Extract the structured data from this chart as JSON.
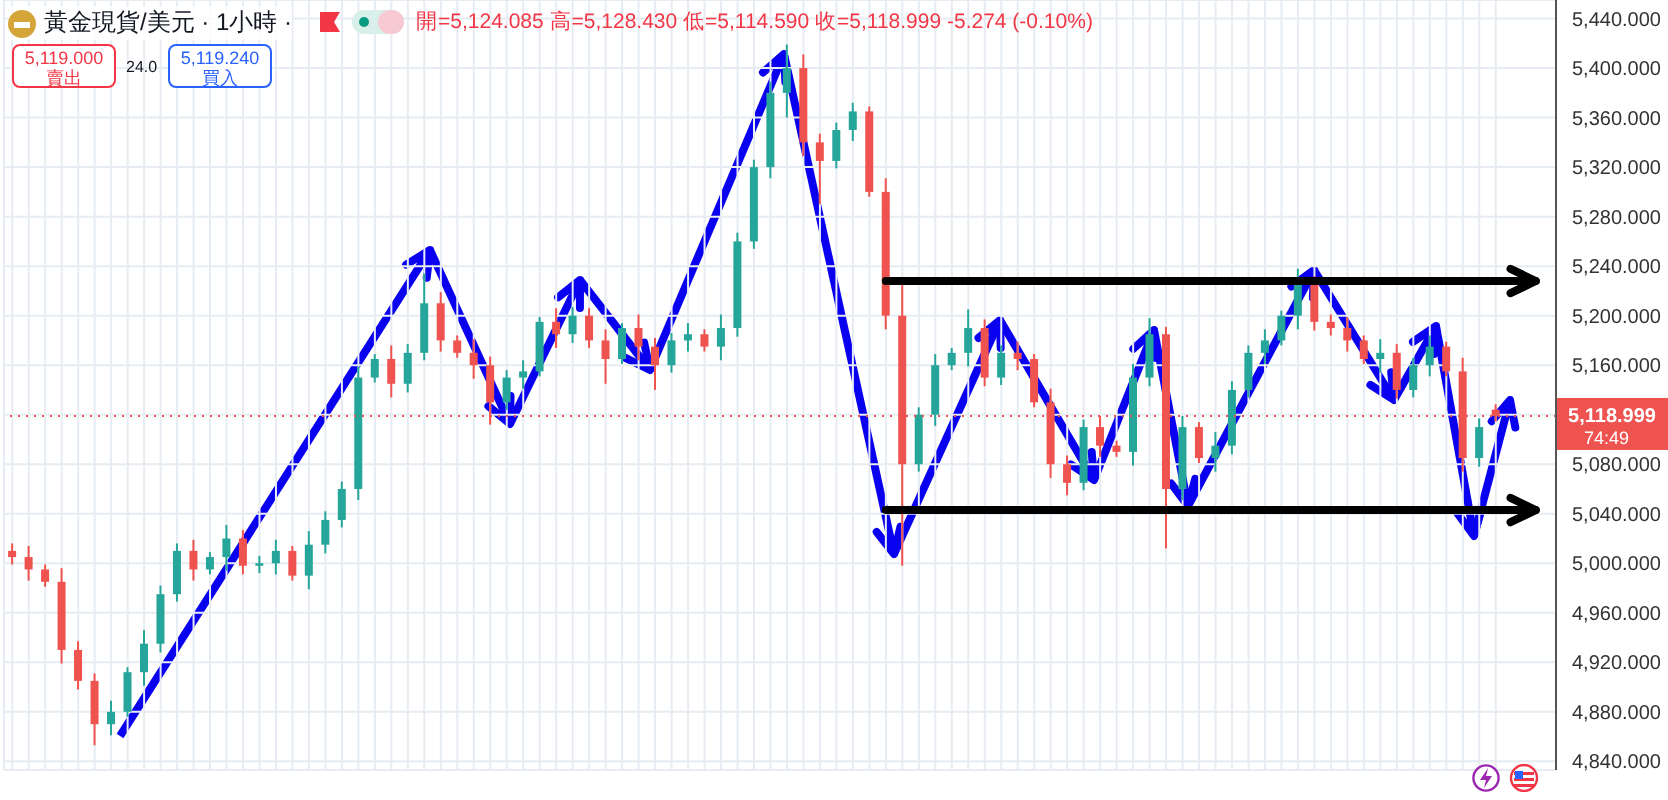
{
  "chart_data": {
    "type": "candlestick",
    "title": "黃金現貨/美元 · 1小時 ·",
    "subtitle": "開=5,124.085 高=5,128.430 低=5,114.590 收=5,118.999 -5.274 (-0.10%)",
    "annotations": [
      "5,119.000",
      "賣出",
      "24.0",
      "5,119.240",
      "買入",
      "74:49"
    ],
    "categories": [
      null,
      null,
      null,
      null,
      null,
      null,
      null,
      null,
      null,
      null,
      null,
      null,
      null,
      null,
      null,
      null,
      null,
      null,
      null,
      null,
      null,
      null,
      null,
      null,
      null,
      null,
      null,
      null,
      null,
      null,
      null,
      null,
      null,
      null,
      null,
      null,
      null,
      null,
      null,
      null,
      null,
      null,
      null,
      null,
      null,
      null,
      null,
      null,
      null,
      null,
      null,
      null,
      null,
      null,
      null,
      null,
      null,
      null,
      null,
      null,
      null,
      null,
      null,
      null,
      null,
      null,
      null,
      null,
      null,
      null,
      null,
      null,
      null,
      null,
      null,
      null,
      null,
      null,
      null,
      null,
      null,
      null,
      null,
      null,
      null,
      null,
      null,
      null,
      null,
      null,
      null
    ],
    "ohlc": [
      [
        5010,
        5016,
        4999,
        5005
      ],
      [
        5005,
        5014,
        4986,
        4995
      ],
      [
        4995,
        4999,
        4981,
        4985
      ],
      [
        4985,
        4996,
        4919,
        4930
      ],
      [
        4930,
        4937,
        4898,
        4905
      ],
      [
        4905,
        4911,
        4853,
        4870
      ],
      [
        4870,
        4889,
        4861,
        4880
      ],
      [
        4880,
        4916,
        4876,
        4912
      ],
      [
        4912,
        4946,
        4901,
        4935
      ],
      [
        4935,
        4982,
        4928,
        4975
      ],
      [
        4975,
        5016,
        4969,
        5010
      ],
      [
        5010,
        5019,
        4986,
        4995
      ],
      [
        4995,
        5009,
        4991,
        5005
      ],
      [
        5005,
        5031,
        4994,
        5020
      ],
      [
        5020,
        5027,
        4991,
        4998
      ],
      [
        4998,
        5006,
        4992,
        5000
      ],
      [
        5000,
        5019,
        4991,
        5010
      ],
      [
        5010,
        5014,
        4986,
        4990
      ],
      [
        4990,
        5026,
        4979,
        5015
      ],
      [
        5015,
        5042,
        5008,
        5035
      ],
      [
        5035,
        5066,
        5029,
        5060
      ],
      [
        5060,
        5159,
        5051,
        5150
      ],
      [
        5150,
        5169,
        5146,
        5165
      ],
      [
        5165,
        5176,
        5134,
        5145
      ],
      [
        5145,
        5177,
        5138,
        5170
      ],
      [
        5170,
        5234,
        5164,
        5210
      ],
      [
        5210,
        5219,
        5171,
        5180
      ],
      [
        5180,
        5184,
        5166,
        5170
      ],
      [
        5170,
        5181,
        5149,
        5160
      ],
      [
        5160,
        5167,
        5112,
        5130
      ],
      [
        5130,
        5156,
        5124,
        5150
      ],
      [
        5150,
        5164,
        5141,
        5155
      ],
      [
        5155,
        5199,
        5151,
        5195
      ],
      [
        5195,
        5206,
        5174,
        5185
      ],
      [
        5185,
        5207,
        5178,
        5200
      ],
      [
        5200,
        5206,
        5174,
        5180
      ],
      [
        5180,
        5189,
        5145,
        5165
      ],
      [
        5165,
        5194,
        5161,
        5190
      ],
      [
        5190,
        5201,
        5164,
        5175
      ],
      [
        5175,
        5182,
        5140,
        5160
      ],
      [
        5160,
        5186,
        5154,
        5180
      ],
      [
        5180,
        5194,
        5171,
        5185
      ],
      [
        5185,
        5189,
        5171,
        5175
      ],
      [
        5175,
        5201,
        5164,
        5190
      ],
      [
        5190,
        5267,
        5183,
        5260
      ],
      [
        5260,
        5326,
        5254,
        5320
      ],
      [
        5320,
        5389,
        5311,
        5380
      ],
      [
        5380,
        5419,
        5360,
        5400
      ],
      [
        5400,
        5411,
        5329,
        5340
      ],
      [
        5340,
        5347,
        5290,
        5325
      ],
      [
        5325,
        5356,
        5319,
        5350
      ],
      [
        5350,
        5372,
        5341,
        5365
      ],
      [
        5365,
        5369,
        5296,
        5300
      ],
      [
        5300,
        5311,
        5189,
        5200
      ],
      [
        5200,
        5230,
        4998,
        5080
      ],
      [
        5080,
        5126,
        5074,
        5120
      ],
      [
        5120,
        5169,
        5111,
        5160
      ],
      [
        5160,
        5174,
        5156,
        5170
      ],
      [
        5170,
        5205,
        5159,
        5190
      ],
      [
        5190,
        5197,
        5143,
        5150
      ],
      [
        5150,
        5176,
        5144,
        5170
      ],
      [
        5170,
        5179,
        5156,
        5165
      ],
      [
        5165,
        5169,
        5126,
        5130
      ],
      [
        5130,
        5141,
        5069,
        5080
      ],
      [
        5080,
        5087,
        5055,
        5065
      ],
      [
        5065,
        5116,
        5059,
        5110
      ],
      [
        5110,
        5119,
        5086,
        5095
      ],
      [
        5095,
        5099,
        5086,
        5090
      ],
      [
        5090,
        5161,
        5079,
        5150
      ],
      [
        5150,
        5198,
        5143,
        5185
      ],
      [
        5185,
        5191,
        5012,
        5060
      ],
      [
        5060,
        5119,
        5051,
        5110
      ],
      [
        5110,
        5114,
        5081,
        5085
      ],
      [
        5085,
        5106,
        5074,
        5095
      ],
      [
        5095,
        5147,
        5088,
        5140
      ],
      [
        5140,
        5176,
        5134,
        5170
      ],
      [
        5170,
        5189,
        5161,
        5180
      ],
      [
        5180,
        5204,
        5176,
        5200
      ],
      [
        5200,
        5238,
        5189,
        5225
      ],
      [
        5225,
        5232,
        5188,
        5195
      ],
      [
        5195,
        5201,
        5184,
        5190
      ],
      [
        5190,
        5199,
        5171,
        5180
      ],
      [
        5180,
        5184,
        5161,
        5165
      ],
      [
        5165,
        5181,
        5154,
        5170
      ],
      [
        5170,
        5177,
        5133,
        5140
      ],
      [
        5140,
        5166,
        5134,
        5160
      ],
      [
        5160,
        5184,
        5151,
        5175
      ],
      [
        5175,
        5179,
        5151,
        5155
      ],
      [
        5155,
        5166,
        5074,
        5085
      ],
      [
        5085,
        5117,
        5078,
        5110
      ],
      [
        5124.085,
        5128.43,
        5114.59,
        5118.999
      ]
    ],
    "ylim": [
      4833,
      5455
    ],
    "yticks": [
      {
        "value": 4840,
        "label": "4,840.000"
      },
      {
        "value": 4880,
        "label": "4,880.000"
      },
      {
        "value": 4920,
        "label": "4,920.000"
      },
      {
        "value": 4960,
        "label": "4,960.000"
      },
      {
        "value": 5000,
        "label": "5,000.000"
      },
      {
        "value": 5040,
        "label": "5,040.000"
      },
      {
        "value": 5080,
        "label": "5,080.000"
      },
      {
        "value": 5120,
        "label": null
      },
      {
        "value": 5160,
        "label": "5,160.000"
      },
      {
        "value": 5200,
        "label": "5,200.000"
      },
      {
        "value": 5240,
        "label": "5,240.000"
      },
      {
        "value": 5280,
        "label": "5,280.000"
      },
      {
        "value": 5320,
        "label": "5,320.000"
      },
      {
        "value": 5360,
        "label": "5,360.000"
      },
      {
        "value": 5400,
        "label": "5,400.000"
      },
      {
        "value": 5440,
        "label": "5,440.000"
      }
    ],
    "ref_lines": [
      {
        "axis": "y",
        "value": 5118.999,
        "label": "5,118.999",
        "color": "#ef5350",
        "line_style": "dotted"
      },
      {
        "axis": "y",
        "value": 5228,
        "color": "#000000",
        "line_style": "solid"
      },
      {
        "axis": "y",
        "value": 5043,
        "color": "#000000",
        "line_style": "solid"
      }
    ],
    "grid": true,
    "legend": false,
    "tick_labels": "y"
  }
}
